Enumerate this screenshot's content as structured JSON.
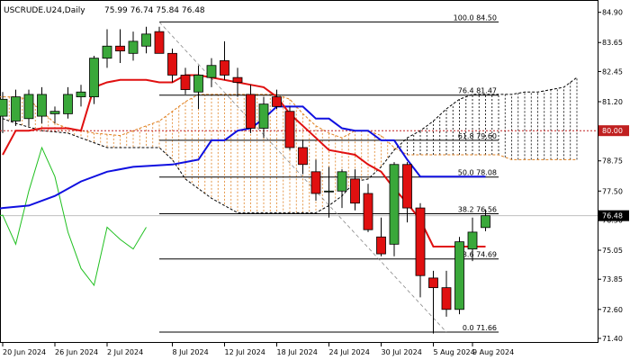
{
  "header": {
    "symbol": "USCRUDE.U24,Daily",
    "ohlc": "75.99 76.74 75.84 76.48"
  },
  "chart_data": {
    "type": "candlestick",
    "ylim": [
      71.4,
      85.0
    ],
    "y_ticks": [
      "84.90",
      "83.65",
      "82.45",
      "81.20",
      "80.00",
      "78.75",
      "77.50",
      "76.30",
      "75.05",
      "73.85",
      "72.60",
      "71.40"
    ],
    "x_ticks": [
      "20 Jun 2024",
      "26 Jun 2024",
      "2 Jul 2024",
      "8 Jul 2024",
      "12 Jul 2024",
      "18 Jul 2024",
      "24 Jul 2024",
      "30 Jul 2024",
      "5 Aug 2024",
      "9 Aug 2024"
    ],
    "candles": [
      {
        "o": 80.6,
        "h": 81.6,
        "l": 79.9,
        "c": 81.3
      },
      {
        "o": 80.4,
        "h": 81.7,
        "l": 80.2,
        "c": 81.4
      },
      {
        "o": 80.5,
        "h": 81.7,
        "l": 80.2,
        "c": 81.5
      },
      {
        "o": 80.6,
        "h": 81.8,
        "l": 80.3,
        "c": 81.5
      },
      {
        "o": 80.7,
        "h": 81.0,
        "l": 80.3,
        "c": 80.8
      },
      {
        "o": 80.7,
        "h": 81.8,
        "l": 80.5,
        "c": 81.5
      },
      {
        "o": 81.4,
        "h": 81.9,
        "l": 81.0,
        "c": 81.6
      },
      {
        "o": 81.4,
        "h": 83.1,
        "l": 81.1,
        "c": 83.0
      },
      {
        "o": 83.0,
        "h": 84.2,
        "l": 82.6,
        "c": 83.5
      },
      {
        "o": 83.5,
        "h": 84.2,
        "l": 82.8,
        "c": 83.3
      },
      {
        "o": 83.2,
        "h": 84.1,
        "l": 82.9,
        "c": 83.7
      },
      {
        "o": 83.5,
        "h": 84.3,
        "l": 83.2,
        "c": 84.0
      },
      {
        "o": 84.1,
        "h": 84.3,
        "l": 83.2,
        "c": 83.2
      },
      {
        "o": 83.2,
        "h": 83.4,
        "l": 82.0,
        "c": 82.3
      },
      {
        "o": 82.3,
        "h": 82.6,
        "l": 81.5,
        "c": 81.7
      },
      {
        "o": 81.6,
        "h": 82.7,
        "l": 80.9,
        "c": 82.3
      },
      {
        "o": 82.2,
        "h": 83.0,
        "l": 81.8,
        "c": 82.7
      },
      {
        "o": 82.9,
        "h": 83.7,
        "l": 82.1,
        "c": 82.3
      },
      {
        "o": 82.2,
        "h": 82.6,
        "l": 81.4,
        "c": 82.0
      },
      {
        "o": 81.5,
        "h": 81.9,
        "l": 79.9,
        "c": 80.1
      },
      {
        "o": 80.1,
        "h": 81.4,
        "l": 79.7,
        "c": 81.1
      },
      {
        "o": 81.4,
        "h": 81.7,
        "l": 80.9,
        "c": 81.0
      },
      {
        "o": 80.8,
        "h": 81.0,
        "l": 79.2,
        "c": 79.3
      },
      {
        "o": 79.3,
        "h": 79.6,
        "l": 78.2,
        "c": 78.6
      },
      {
        "o": 78.3,
        "h": 78.8,
        "l": 77.1,
        "c": 77.4
      },
      {
        "o": 77.5,
        "h": 78.5,
        "l": 76.4,
        "c": 77.5
      },
      {
        "o": 77.5,
        "h": 78.4,
        "l": 76.8,
        "c": 78.3
      },
      {
        "o": 78.0,
        "h": 78.4,
        "l": 76.7,
        "c": 77.0
      },
      {
        "o": 77.4,
        "h": 77.8,
        "l": 75.8,
        "c": 75.9
      },
      {
        "o": 75.6,
        "h": 76.4,
        "l": 74.8,
        "c": 74.9
      },
      {
        "o": 75.3,
        "h": 78.7,
        "l": 74.8,
        "c": 78.6
      },
      {
        "o": 78.6,
        "h": 78.7,
        "l": 76.2,
        "c": 76.8
      },
      {
        "o": 76.8,
        "h": 77.0,
        "l": 73.1,
        "c": 74.0
      },
      {
        "o": 73.9,
        "h": 74.2,
        "l": 71.6,
        "c": 73.5
      },
      {
        "o": 73.5,
        "h": 74.2,
        "l": 72.3,
        "c": 72.6
      },
      {
        "o": 72.6,
        "h": 75.6,
        "l": 72.4,
        "c": 75.4
      },
      {
        "o": 75.1,
        "h": 76.4,
        "l": 74.6,
        "c": 75.8
      },
      {
        "o": 75.99,
        "h": 76.74,
        "l": 75.84,
        "c": 76.48
      }
    ],
    "tenkan_sen": [
      {
        "i": 0,
        "v": 79.0
      },
      {
        "i": 1,
        "v": 80.0
      },
      {
        "i": 2,
        "v": 80.0
      },
      {
        "i": 3,
        "v": 80.1
      },
      {
        "i": 4,
        "v": 80.1
      },
      {
        "i": 5,
        "v": 80.1
      },
      {
        "i": 6,
        "v": 80.0
      },
      {
        "i": 7,
        "v": 81.8
      },
      {
        "i": 8,
        "v": 82.0
      },
      {
        "i": 9,
        "v": 82.1
      },
      {
        "i": 10,
        "v": 82.1
      },
      {
        "i": 11,
        "v": 82.1
      },
      {
        "i": 12,
        "v": 82.0
      },
      {
        "i": 13,
        "v": 82.0
      },
      {
        "i": 14,
        "v": 82.3
      },
      {
        "i": 15,
        "v": 82.3
      },
      {
        "i": 16,
        "v": 82.2
      },
      {
        "i": 17,
        "v": 82.1
      },
      {
        "i": 18,
        "v": 82.0
      },
      {
        "i": 19,
        "v": 81.9
      },
      {
        "i": 20,
        "v": 81.8
      },
      {
        "i": 21,
        "v": 81.4
      },
      {
        "i": 22,
        "v": 80.7
      },
      {
        "i": 23,
        "v": 80.2
      },
      {
        "i": 24,
        "v": 79.7
      },
      {
        "i": 25,
        "v": 79.2
      },
      {
        "i": 26,
        "v": 79.1
      },
      {
        "i": 27,
        "v": 79.0
      },
      {
        "i": 28,
        "v": 78.6
      },
      {
        "i": 29,
        "v": 78.3
      },
      {
        "i": 30,
        "v": 77.6
      },
      {
        "i": 31,
        "v": 77.0
      },
      {
        "i": 32,
        "v": 76.3
      },
      {
        "i": 33,
        "v": 75.2
      },
      {
        "i": 34,
        "v": 75.2
      },
      {
        "i": 35,
        "v": 75.2
      },
      {
        "i": 36,
        "v": 75.2
      },
      {
        "i": 37,
        "v": 75.2
      }
    ],
    "kijun_sen": [
      {
        "i": -1,
        "v": 76.7
      },
      {
        "i": 0,
        "v": 76.8
      },
      {
        "i": 2,
        "v": 76.9
      },
      {
        "i": 4,
        "v": 77.3
      },
      {
        "i": 6,
        "v": 77.9
      },
      {
        "i": 8,
        "v": 78.3
      },
      {
        "i": 10,
        "v": 78.5
      },
      {
        "i": 13,
        "v": 78.6
      },
      {
        "i": 14,
        "v": 78.7
      },
      {
        "i": 15,
        "v": 78.8
      },
      {
        "i": 16,
        "v": 79.6
      },
      {
        "i": 17,
        "v": 79.6
      },
      {
        "i": 18,
        "v": 80.0
      },
      {
        "i": 19,
        "v": 80.1
      },
      {
        "i": 20,
        "v": 80.5
      },
      {
        "i": 21,
        "v": 81.0
      },
      {
        "i": 22,
        "v": 81.0
      },
      {
        "i": 23,
        "v": 81.0
      },
      {
        "i": 24,
        "v": 80.5
      },
      {
        "i": 25,
        "v": 80.5
      },
      {
        "i": 26,
        "v": 80.1
      },
      {
        "i": 27,
        "v": 80.0
      },
      {
        "i": 28,
        "v": 80.0
      },
      {
        "i": 29,
        "v": 79.6
      },
      {
        "i": 30,
        "v": 79.6
      },
      {
        "i": 31,
        "v": 78.8
      },
      {
        "i": 32,
        "v": 78.1
      },
      {
        "i": 33,
        "v": 78.1
      },
      {
        "i": 34,
        "v": 78.1
      },
      {
        "i": 35,
        "v": 78.1
      },
      {
        "i": 36,
        "v": 78.1
      },
      {
        "i": 37,
        "v": 78.1
      }
    ],
    "chikou_span": [
      {
        "i": -1,
        "v": 76.4
      },
      {
        "i": 0,
        "v": 76.5
      },
      {
        "i": 1,
        "v": 75.3
      },
      {
        "i": 2,
        "v": 77.5
      },
      {
        "i": 3,
        "v": 79.3
      },
      {
        "i": 4,
        "v": 78.1
      },
      {
        "i": 5,
        "v": 75.8
      },
      {
        "i": 6,
        "v": 74.3
      },
      {
        "i": 7,
        "v": 73.6
      },
      {
        "i": 8,
        "v": 76.0
      },
      {
        "i": 9,
        "v": 75.5
      },
      {
        "i": 10,
        "v": 75.1
      },
      {
        "i": 11,
        "v": 76.0
      }
    ],
    "senkou_span_a": [
      {
        "i": -1,
        "v": 81.4
      },
      {
        "i": 1,
        "v": 81.4
      },
      {
        "i": 2,
        "v": 81.3
      },
      {
        "i": 4,
        "v": 80.3
      },
      {
        "i": 5,
        "v": 80.1
      },
      {
        "i": 7,
        "v": 79.9
      },
      {
        "i": 9,
        "v": 79.8
      },
      {
        "i": 11,
        "v": 80.2
      },
      {
        "i": 12,
        "v": 80.4
      },
      {
        "i": 13,
        "v": 80.8
      },
      {
        "i": 14,
        "v": 81.2
      },
      {
        "i": 15,
        "v": 81.5
      },
      {
        "i": 16,
        "v": 81.5
      },
      {
        "i": 17,
        "v": 81.5
      },
      {
        "i": 18,
        "v": 81.5
      },
      {
        "i": 19,
        "v": 81.5
      },
      {
        "i": 20,
        "v": 81.5
      },
      {
        "i": 21,
        "v": 81.5
      },
      {
        "i": 22,
        "v": 81.3
      },
      {
        "i": 23,
        "v": 80.7
      },
      {
        "i": 24,
        "v": 80.2
      },
      {
        "i": 25,
        "v": 79.9
      },
      {
        "i": 26,
        "v": 79.7
      },
      {
        "i": 27,
        "v": 80.0
      },
      {
        "i": 28,
        "v": 80.0
      },
      {
        "i": 29,
        "v": 79.8
      },
      {
        "i": 30,
        "v": 79.3
      },
      {
        "i": 31,
        "v": 79.0
      },
      {
        "i": 32,
        "v": 79.0
      },
      {
        "i": 33,
        "v": 79.0
      },
      {
        "i": 34,
        "v": 79.0
      },
      {
        "i": 35,
        "v": 79.0
      },
      {
        "i": 36,
        "v": 79.0
      },
      {
        "i": 37,
        "v": 79.0
      },
      {
        "i": 38,
        "v": 79.0
      },
      {
        "i": 39,
        "v": 78.8
      },
      {
        "i": 40,
        "v": 78.8
      },
      {
        "i": 41,
        "v": 78.8
      },
      {
        "i": 42,
        "v": 78.8
      },
      {
        "i": 43,
        "v": 78.8
      },
      {
        "i": 44,
        "v": 78.8
      }
    ],
    "senkou_span_b": [
      {
        "i": -1,
        "v": 80.7
      },
      {
        "i": 1,
        "v": 80.3
      },
      {
        "i": 3,
        "v": 80.0
      },
      {
        "i": 5,
        "v": 79.9
      },
      {
        "i": 7,
        "v": 79.5
      },
      {
        "i": 8,
        "v": 79.3
      },
      {
        "i": 9,
        "v": 79.3
      },
      {
        "i": 11,
        "v": 79.3
      },
      {
        "i": 12,
        "v": 79.3
      },
      {
        "i": 13,
        "v": 78.8
      },
      {
        "i": 14,
        "v": 78.0
      },
      {
        "i": 15,
        "v": 77.6
      },
      {
        "i": 16,
        "v": 77.2
      },
      {
        "i": 17,
        "v": 76.9
      },
      {
        "i": 18,
        "v": 76.6
      },
      {
        "i": 19,
        "v": 76.6
      },
      {
        "i": 20,
        "v": 76.6
      },
      {
        "i": 21,
        "v": 76.6
      },
      {
        "i": 22,
        "v": 76.6
      },
      {
        "i": 23,
        "v": 76.6
      },
      {
        "i": 24,
        "v": 76.6
      },
      {
        "i": 25,
        "v": 76.9
      },
      {
        "i": 26,
        "v": 77.3
      },
      {
        "i": 27,
        "v": 77.9
      },
      {
        "i": 28,
        "v": 78.0
      },
      {
        "i": 29,
        "v": 78.5
      },
      {
        "i": 30,
        "v": 79.2
      },
      {
        "i": 31,
        "v": 79.7
      },
      {
        "i": 32,
        "v": 80.0
      },
      {
        "i": 33,
        "v": 80.4
      },
      {
        "i": 34,
        "v": 80.9
      },
      {
        "i": 35,
        "v": 81.3
      },
      {
        "i": 36,
        "v": 81.5
      },
      {
        "i": 37,
        "v": 81.5
      },
      {
        "i": 38,
        "v": 81.5
      },
      {
        "i": 39,
        "v": 81.5
      },
      {
        "i": 40,
        "v": 81.6
      },
      {
        "i": 41,
        "v": 81.6
      },
      {
        "i": 42,
        "v": 81.7
      },
      {
        "i": 43,
        "v": 81.8
      },
      {
        "i": 44,
        "v": 82.2
      }
    ],
    "fib_levels": [
      {
        "label": "100.0 84.50",
        "v": 84.5
      },
      {
        "label": "76.4 81.47",
        "v": 81.47
      },
      {
        "label": "61.8 79.60",
        "v": 79.6
      },
      {
        "label": "50.0 78.08",
        "v": 78.08
      },
      {
        "label": "38.2 76.56",
        "v": 76.56
      },
      {
        "label": "23.6 74.69",
        "v": 74.69
      },
      {
        "label": "0.0 71.66",
        "v": 71.66
      }
    ],
    "fib_start_index": 12,
    "fib_end_index": 38,
    "fib_diagonal": {
      "from_i": 12,
      "from_v": 84.5,
      "to_i": 34,
      "to_v": 71.66
    },
    "level_line": {
      "v": 80.0,
      "label": "80.00"
    },
    "price_badge": {
      "v": 76.48,
      "label": "76.48"
    },
    "colors": {
      "bull": "#3aa83a",
      "bear": "#e01010",
      "tenkan": "#e01010",
      "kijun": "#1010e0",
      "chikou": "#20c020",
      "cloud_fill": "#e08020",
      "level_line": "#c02020",
      "badge": "#000000"
    }
  }
}
